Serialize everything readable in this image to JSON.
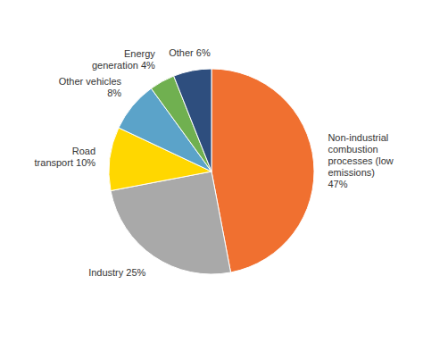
{
  "chart_data": {
    "type": "pie",
    "categories": [
      "Non-industrial\ncombustion\nprocesses (low\nemissions)\n47%",
      "Industry 25%",
      "Road\ntransport 10%",
      "Other vehicles\n8%",
      "Energy\ngeneration 4%",
      "Other 6%"
    ],
    "values": [
      47,
      25,
      10,
      8,
      4,
      6
    ],
    "colors": [
      "#F07030",
      "#A9A9A9",
      "#FFD700",
      "#5BA3C9",
      "#70B050",
      "#2E4E7E"
    ]
  }
}
